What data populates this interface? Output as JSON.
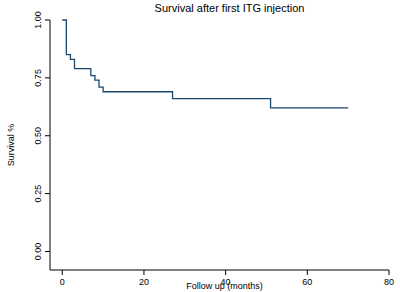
{
  "chart_data": {
    "type": "step",
    "title": "Survival after first ITG injection",
    "x_label": "Follow up (months)",
    "y_label": "Survival %",
    "x": [
      0,
      1,
      2,
      3,
      7,
      8,
      9,
      10,
      27,
      51,
      70
    ],
    "values": [
      1.0,
      0.85,
      0.83,
      0.79,
      0.76,
      0.74,
      0.71,
      0.69,
      0.66,
      0.62,
      0.62
    ],
    "color": "#1a476f",
    "xlim": [
      -3,
      80
    ],
    "xticks": [
      0,
      20,
      40,
      60,
      80
    ],
    "ylim": [
      -0.08,
      1.0
    ],
    "yticks": [
      {
        "value": 0,
        "label": "0.00"
      },
      {
        "value": 0.25,
        "label": "0.25"
      },
      {
        "value": 0.5,
        "label": "0.50"
      },
      {
        "value": 0.75,
        "label": "0.75"
      },
      {
        "value": 1.0,
        "label": "1.00"
      }
    ],
    "grid": false
  }
}
